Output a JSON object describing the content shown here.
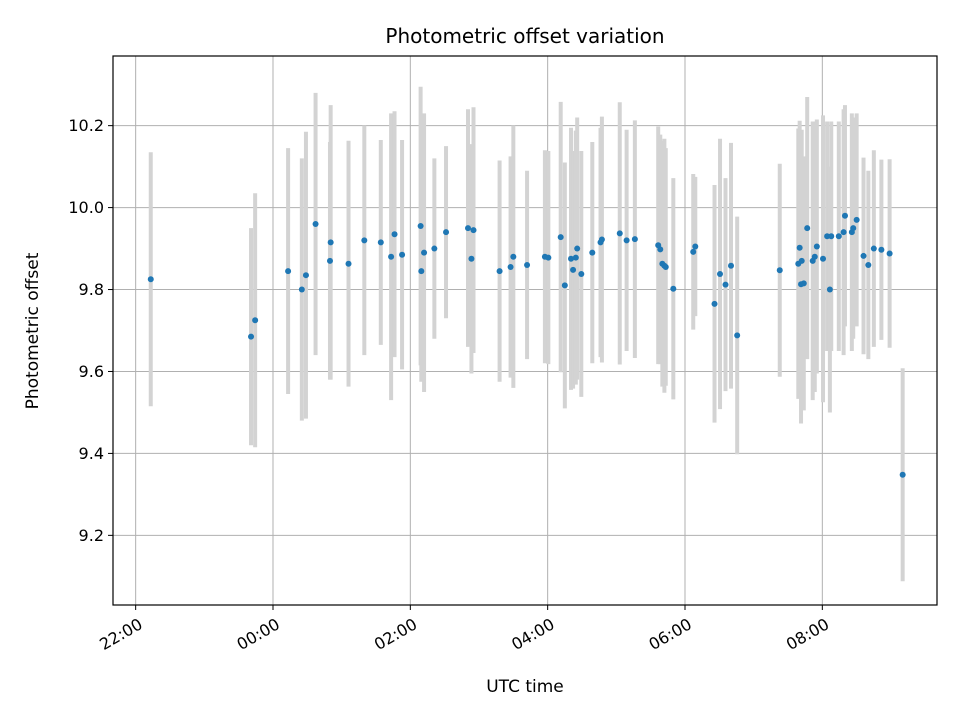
{
  "chart_data": {
    "type": "scatter",
    "title": "Photometric offset variation",
    "xlabel": "UTC time",
    "ylabel": "Photometric offset",
    "x_axis_kind": "time",
    "x_range_hours": [
      -2.33,
      9.67
    ],
    "xticks": [
      {
        "value": -2,
        "label": "22:00"
      },
      {
        "value": 0,
        "label": "00:00"
      },
      {
        "value": 2,
        "label": "02:00"
      },
      {
        "value": 4,
        "label": "04:00"
      },
      {
        "value": 6,
        "label": "06:00"
      },
      {
        "value": 8,
        "label": "08:00"
      }
    ],
    "ylim": [
      9.03,
      10.37
    ],
    "yticks": [
      {
        "value": 9.2,
        "label": "9.2"
      },
      {
        "value": 9.4,
        "label": "9.4"
      },
      {
        "value": 9.6,
        "label": "9.6"
      },
      {
        "value": 9.8,
        "label": "9.8"
      },
      {
        "value": 10.0,
        "label": "10.0"
      },
      {
        "value": 10.2,
        "label": "10.2"
      }
    ],
    "grid": true,
    "colors": {
      "marker": "#1f77b4",
      "errorbar": "#d3d3d3",
      "grid": "#b0b0b0"
    },
    "x": [
      -1.78,
      -0.32,
      -0.26,
      0.22,
      0.42,
      0.48,
      0.62,
      0.83,
      0.84,
      1.1,
      1.33,
      1.57,
      1.72,
      1.77,
      1.88,
      2.15,
      2.16,
      2.2,
      2.35,
      2.52,
      2.84,
      2.89,
      2.92,
      3.3,
      3.46,
      3.5,
      3.7,
      3.96,
      4.01,
      4.19,
      4.25,
      4.34,
      4.37,
      4.41,
      4.43,
      4.49,
      4.65,
      4.77,
      4.79,
      5.05,
      5.15,
      5.27,
      5.61,
      5.64,
      5.67,
      5.7,
      5.72,
      5.83,
      6.12,
      6.15,
      6.43,
      6.51,
      6.59,
      6.67,
      6.76,
      7.38,
      7.65,
      7.67,
      7.69,
      7.7,
      7.73,
      7.78,
      7.86,
      7.89,
      7.92,
      8.01,
      8.07,
      8.11,
      8.13,
      8.24,
      8.31,
      8.33,
      8.43,
      8.45,
      8.5,
      8.6,
      8.67,
      8.75,
      8.86,
      8.98,
      9.17
    ],
    "y": [
      9.825,
      9.685,
      9.725,
      9.845,
      9.8,
      9.835,
      9.96,
      9.87,
      9.915,
      9.863,
      9.92,
      9.915,
      9.88,
      9.935,
      9.885,
      9.955,
      9.845,
      9.89,
      9.9,
      9.94,
      9.95,
      9.875,
      9.945,
      9.845,
      9.855,
      9.88,
      9.86,
      9.88,
      9.878,
      9.928,
      9.81,
      9.875,
      9.848,
      9.878,
      9.9,
      9.838,
      9.89,
      9.915,
      9.922,
      9.937,
      9.92,
      9.923,
      9.908,
      9.898,
      9.863,
      9.858,
      9.855,
      9.802,
      9.892,
      9.905,
      9.765,
      9.838,
      9.812,
      9.858,
      9.688,
      9.847,
      9.863,
      9.902,
      9.813,
      9.87,
      9.815,
      9.95,
      9.87,
      9.88,
      9.905,
      9.875,
      9.93,
      9.8,
      9.93,
      9.93,
      9.94,
      9.98,
      9.94,
      9.95,
      9.97,
      9.882,
      9.86,
      9.9,
      9.897,
      9.888,
      9.348
    ],
    "yerr": [
      0.31,
      0.265,
      0.31,
      0.3,
      0.32,
      0.35,
      0.32,
      0.29,
      0.335,
      0.3,
      0.28,
      0.25,
      0.35,
      0.3,
      0.28,
      0.34,
      0.27,
      0.34,
      0.22,
      0.21,
      0.29,
      0.28,
      0.3,
      0.27,
      0.27,
      0.32,
      0.23,
      0.26,
      0.26,
      0.33,
      0.3,
      0.32,
      0.29,
      0.31,
      0.32,
      0.3,
      0.27,
      0.28,
      0.3,
      0.32,
      0.27,
      0.29,
      0.29,
      0.28,
      0.3,
      0.31,
      0.29,
      0.27,
      0.19,
      0.17,
      0.29,
      0.33,
      0.26,
      0.3,
      0.29,
      0.26,
      0.33,
      0.31,
      0.34,
      0.32,
      0.31,
      0.32,
      0.34,
      0.33,
      0.31,
      0.35,
      0.28,
      0.3,
      0.28,
      0.28,
      0.3,
      0.27,
      0.29,
      0.27,
      0.26,
      0.24,
      0.23,
      0.24,
      0.22,
      0.23,
      0.26
    ]
  }
}
